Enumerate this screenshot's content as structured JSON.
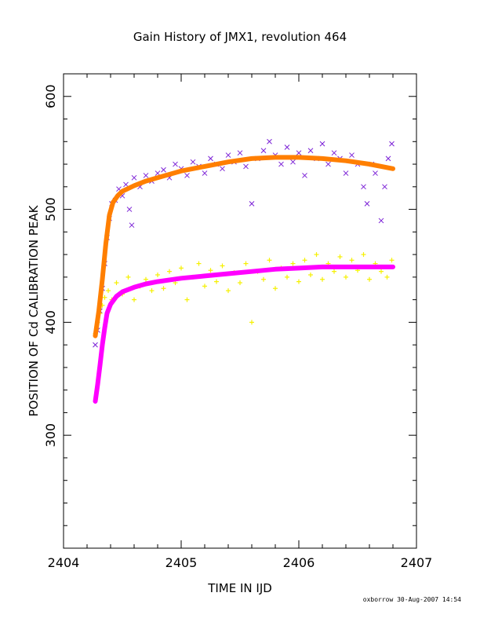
{
  "chart_data": {
    "type": "scatter",
    "title": "Gain History of JMX1, revolution 464",
    "xlabel": "TIME IN IJD",
    "ylabel": "POSITION OF Cd CALIBRATION PEAK",
    "xlim": [
      2404,
      2407
    ],
    "ylim": [
      200,
      620
    ],
    "xticks": [
      2404,
      2405,
      2406,
      2407
    ],
    "yticks": [
      300,
      400,
      500,
      600
    ],
    "grid": false,
    "series": [
      {
        "marker": "x",
        "color": "#7a1fd6",
        "points": [
          [
            2404.27,
            380
          ],
          [
            2404.29,
            393
          ],
          [
            2404.31,
            410
          ],
          [
            2404.33,
            430
          ],
          [
            2404.35,
            452
          ],
          [
            2404.37,
            475
          ],
          [
            2404.39,
            492
          ],
          [
            2404.41,
            505
          ],
          [
            2404.44,
            508
          ],
          [
            2404.47,
            518
          ],
          [
            2404.5,
            512
          ],
          [
            2404.53,
            522
          ],
          [
            2404.56,
            500
          ],
          [
            2404.58,
            486
          ],
          [
            2404.6,
            528
          ],
          [
            2404.65,
            520
          ],
          [
            2404.7,
            530
          ],
          [
            2404.75,
            525
          ],
          [
            2404.8,
            532
          ],
          [
            2404.85,
            535
          ],
          [
            2404.9,
            528
          ],
          [
            2404.95,
            540
          ],
          [
            2405.0,
            536
          ],
          [
            2405.05,
            530
          ],
          [
            2405.1,
            542
          ],
          [
            2405.15,
            538
          ],
          [
            2405.2,
            532
          ],
          [
            2405.25,
            545
          ],
          [
            2405.3,
            540
          ],
          [
            2405.35,
            536
          ],
          [
            2405.4,
            548
          ],
          [
            2405.45,
            542
          ],
          [
            2405.5,
            550
          ],
          [
            2405.55,
            538
          ],
          [
            2405.6,
            505
          ],
          [
            2405.65,
            545
          ],
          [
            2405.7,
            552
          ],
          [
            2405.75,
            560
          ],
          [
            2405.8,
            548
          ],
          [
            2405.85,
            540
          ],
          [
            2405.9,
            555
          ],
          [
            2405.95,
            542
          ],
          [
            2406.0,
            550
          ],
          [
            2406.05,
            530
          ],
          [
            2406.1,
            552
          ],
          [
            2406.15,
            545
          ],
          [
            2406.2,
            558
          ],
          [
            2406.25,
            540
          ],
          [
            2406.3,
            550
          ],
          [
            2406.35,
            545
          ],
          [
            2406.4,
            532
          ],
          [
            2406.45,
            548
          ],
          [
            2406.5,
            540
          ],
          [
            2406.55,
            520
          ],
          [
            2406.58,
            505
          ],
          [
            2406.62,
            540
          ],
          [
            2406.65,
            532
          ],
          [
            2406.7,
            490
          ],
          [
            2406.73,
            520
          ],
          [
            2406.76,
            545
          ],
          [
            2406.79,
            558
          ]
        ]
      },
      {
        "marker": "+",
        "color": "#f5f000",
        "points": [
          [
            2404.27,
            390
          ],
          [
            2404.29,
            400
          ],
          [
            2404.31,
            408
          ],
          [
            2404.33,
            415
          ],
          [
            2404.35,
            422
          ],
          [
            2404.38,
            428
          ],
          [
            2404.41,
            420
          ],
          [
            2404.45,
            435
          ],
          [
            2404.5,
            425
          ],
          [
            2404.55,
            440
          ],
          [
            2404.6,
            420
          ],
          [
            2404.65,
            432
          ],
          [
            2404.7,
            438
          ],
          [
            2404.75,
            428
          ],
          [
            2404.8,
            442
          ],
          [
            2404.85,
            430
          ],
          [
            2404.9,
            445
          ],
          [
            2404.95,
            435
          ],
          [
            2405.0,
            448
          ],
          [
            2405.05,
            420
          ],
          [
            2405.1,
            440
          ],
          [
            2405.15,
            452
          ],
          [
            2405.2,
            432
          ],
          [
            2405.25,
            446
          ],
          [
            2405.3,
            436
          ],
          [
            2405.35,
            450
          ],
          [
            2405.4,
            428
          ],
          [
            2405.45,
            444
          ],
          [
            2405.5,
            435
          ],
          [
            2405.55,
            452
          ],
          [
            2405.6,
            400
          ],
          [
            2405.65,
            445
          ],
          [
            2405.7,
            438
          ],
          [
            2405.75,
            455
          ],
          [
            2405.8,
            430
          ],
          [
            2405.85,
            448
          ],
          [
            2405.9,
            440
          ],
          [
            2405.95,
            452
          ],
          [
            2406.0,
            436
          ],
          [
            2406.05,
            455
          ],
          [
            2406.1,
            442
          ],
          [
            2406.15,
            460
          ],
          [
            2406.2,
            438
          ],
          [
            2406.25,
            452
          ],
          [
            2406.3,
            445
          ],
          [
            2406.35,
            458
          ],
          [
            2406.4,
            440
          ],
          [
            2406.45,
            455
          ],
          [
            2406.5,
            446
          ],
          [
            2406.55,
            460
          ],
          [
            2406.6,
            438
          ],
          [
            2406.65,
            452
          ],
          [
            2406.7,
            445
          ],
          [
            2406.75,
            440
          ],
          [
            2406.79,
            455
          ]
        ]
      },
      {
        "line": true,
        "color": "#ff7f00",
        "points": [
          [
            2404.27,
            388
          ],
          [
            2404.3,
            410
          ],
          [
            2404.33,
            438
          ],
          [
            2404.36,
            470
          ],
          [
            2404.39,
            495
          ],
          [
            2404.42,
            506
          ],
          [
            2404.46,
            512
          ],
          [
            2404.5,
            516
          ],
          [
            2404.6,
            521
          ],
          [
            2404.7,
            525
          ],
          [
            2404.8,
            528
          ],
          [
            2405.0,
            534
          ],
          [
            2405.2,
            538
          ],
          [
            2405.4,
            542
          ],
          [
            2405.6,
            545
          ],
          [
            2405.8,
            546
          ],
          [
            2406.0,
            546
          ],
          [
            2406.2,
            545
          ],
          [
            2406.4,
            543
          ],
          [
            2406.6,
            540
          ],
          [
            2406.8,
            536
          ]
        ]
      },
      {
        "line": true,
        "color": "#ff00ff",
        "points": [
          [
            2404.27,
            330
          ],
          [
            2404.29,
            345
          ],
          [
            2404.31,
            362
          ],
          [
            2404.33,
            380
          ],
          [
            2404.35,
            395
          ],
          [
            2404.37,
            408
          ],
          [
            2404.4,
            416
          ],
          [
            2404.45,
            423
          ],
          [
            2404.5,
            427
          ],
          [
            2404.6,
            431
          ],
          [
            2404.7,
            434
          ],
          [
            2404.8,
            436
          ],
          [
            2405.0,
            439
          ],
          [
            2405.2,
            441
          ],
          [
            2405.4,
            443
          ],
          [
            2405.6,
            445
          ],
          [
            2405.8,
            447
          ],
          [
            2406.0,
            448
          ],
          [
            2406.2,
            449
          ],
          [
            2406.4,
            449
          ],
          [
            2406.6,
            449
          ],
          [
            2406.8,
            449
          ]
        ]
      }
    ]
  },
  "footer": "oxborrow 30-Aug-2007 14:54"
}
